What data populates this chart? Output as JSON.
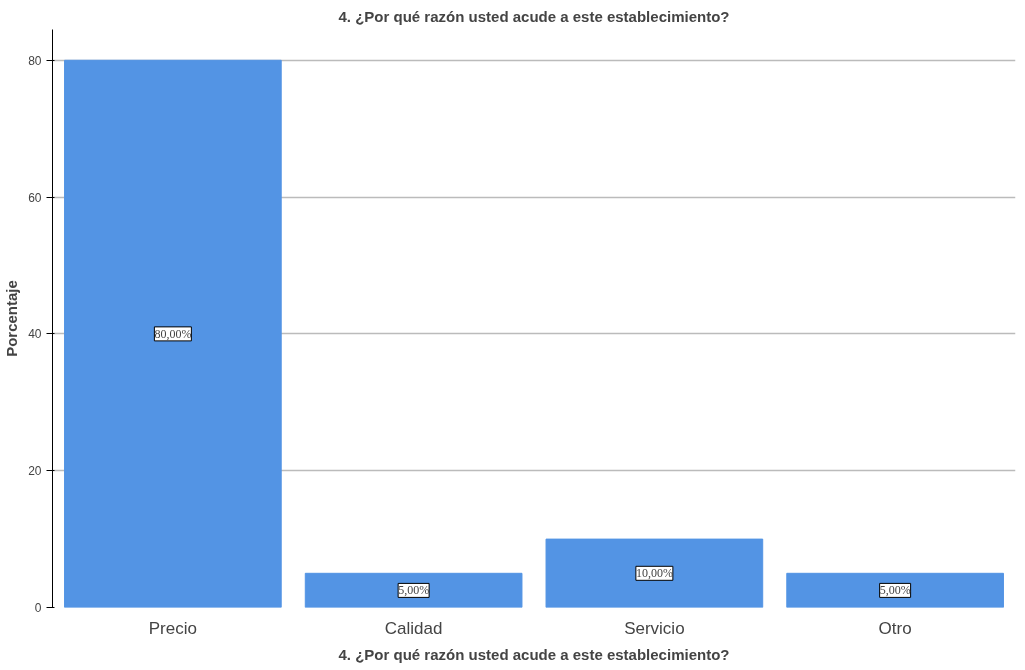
{
  "chart_data": {
    "type": "bar",
    "title": "4. ¿Por qué razón usted acude a este establecimiento?",
    "xlabel": "4. ¿Por qué razón usted acude a este establecimiento?",
    "ylabel": "Porcentaje",
    "categories": [
      "Precio",
      "Calidad",
      "Servicio",
      "Otro"
    ],
    "values": [
      80,
      5,
      10,
      5
    ],
    "value_labels": [
      "80,00%",
      "5,00%",
      "10,00%",
      "5,00%"
    ],
    "color": "#5394e4",
    "ylim": [
      0,
      84.5
    ],
    "yticks": [
      0,
      20,
      40,
      60,
      80
    ],
    "grid": "y"
  }
}
